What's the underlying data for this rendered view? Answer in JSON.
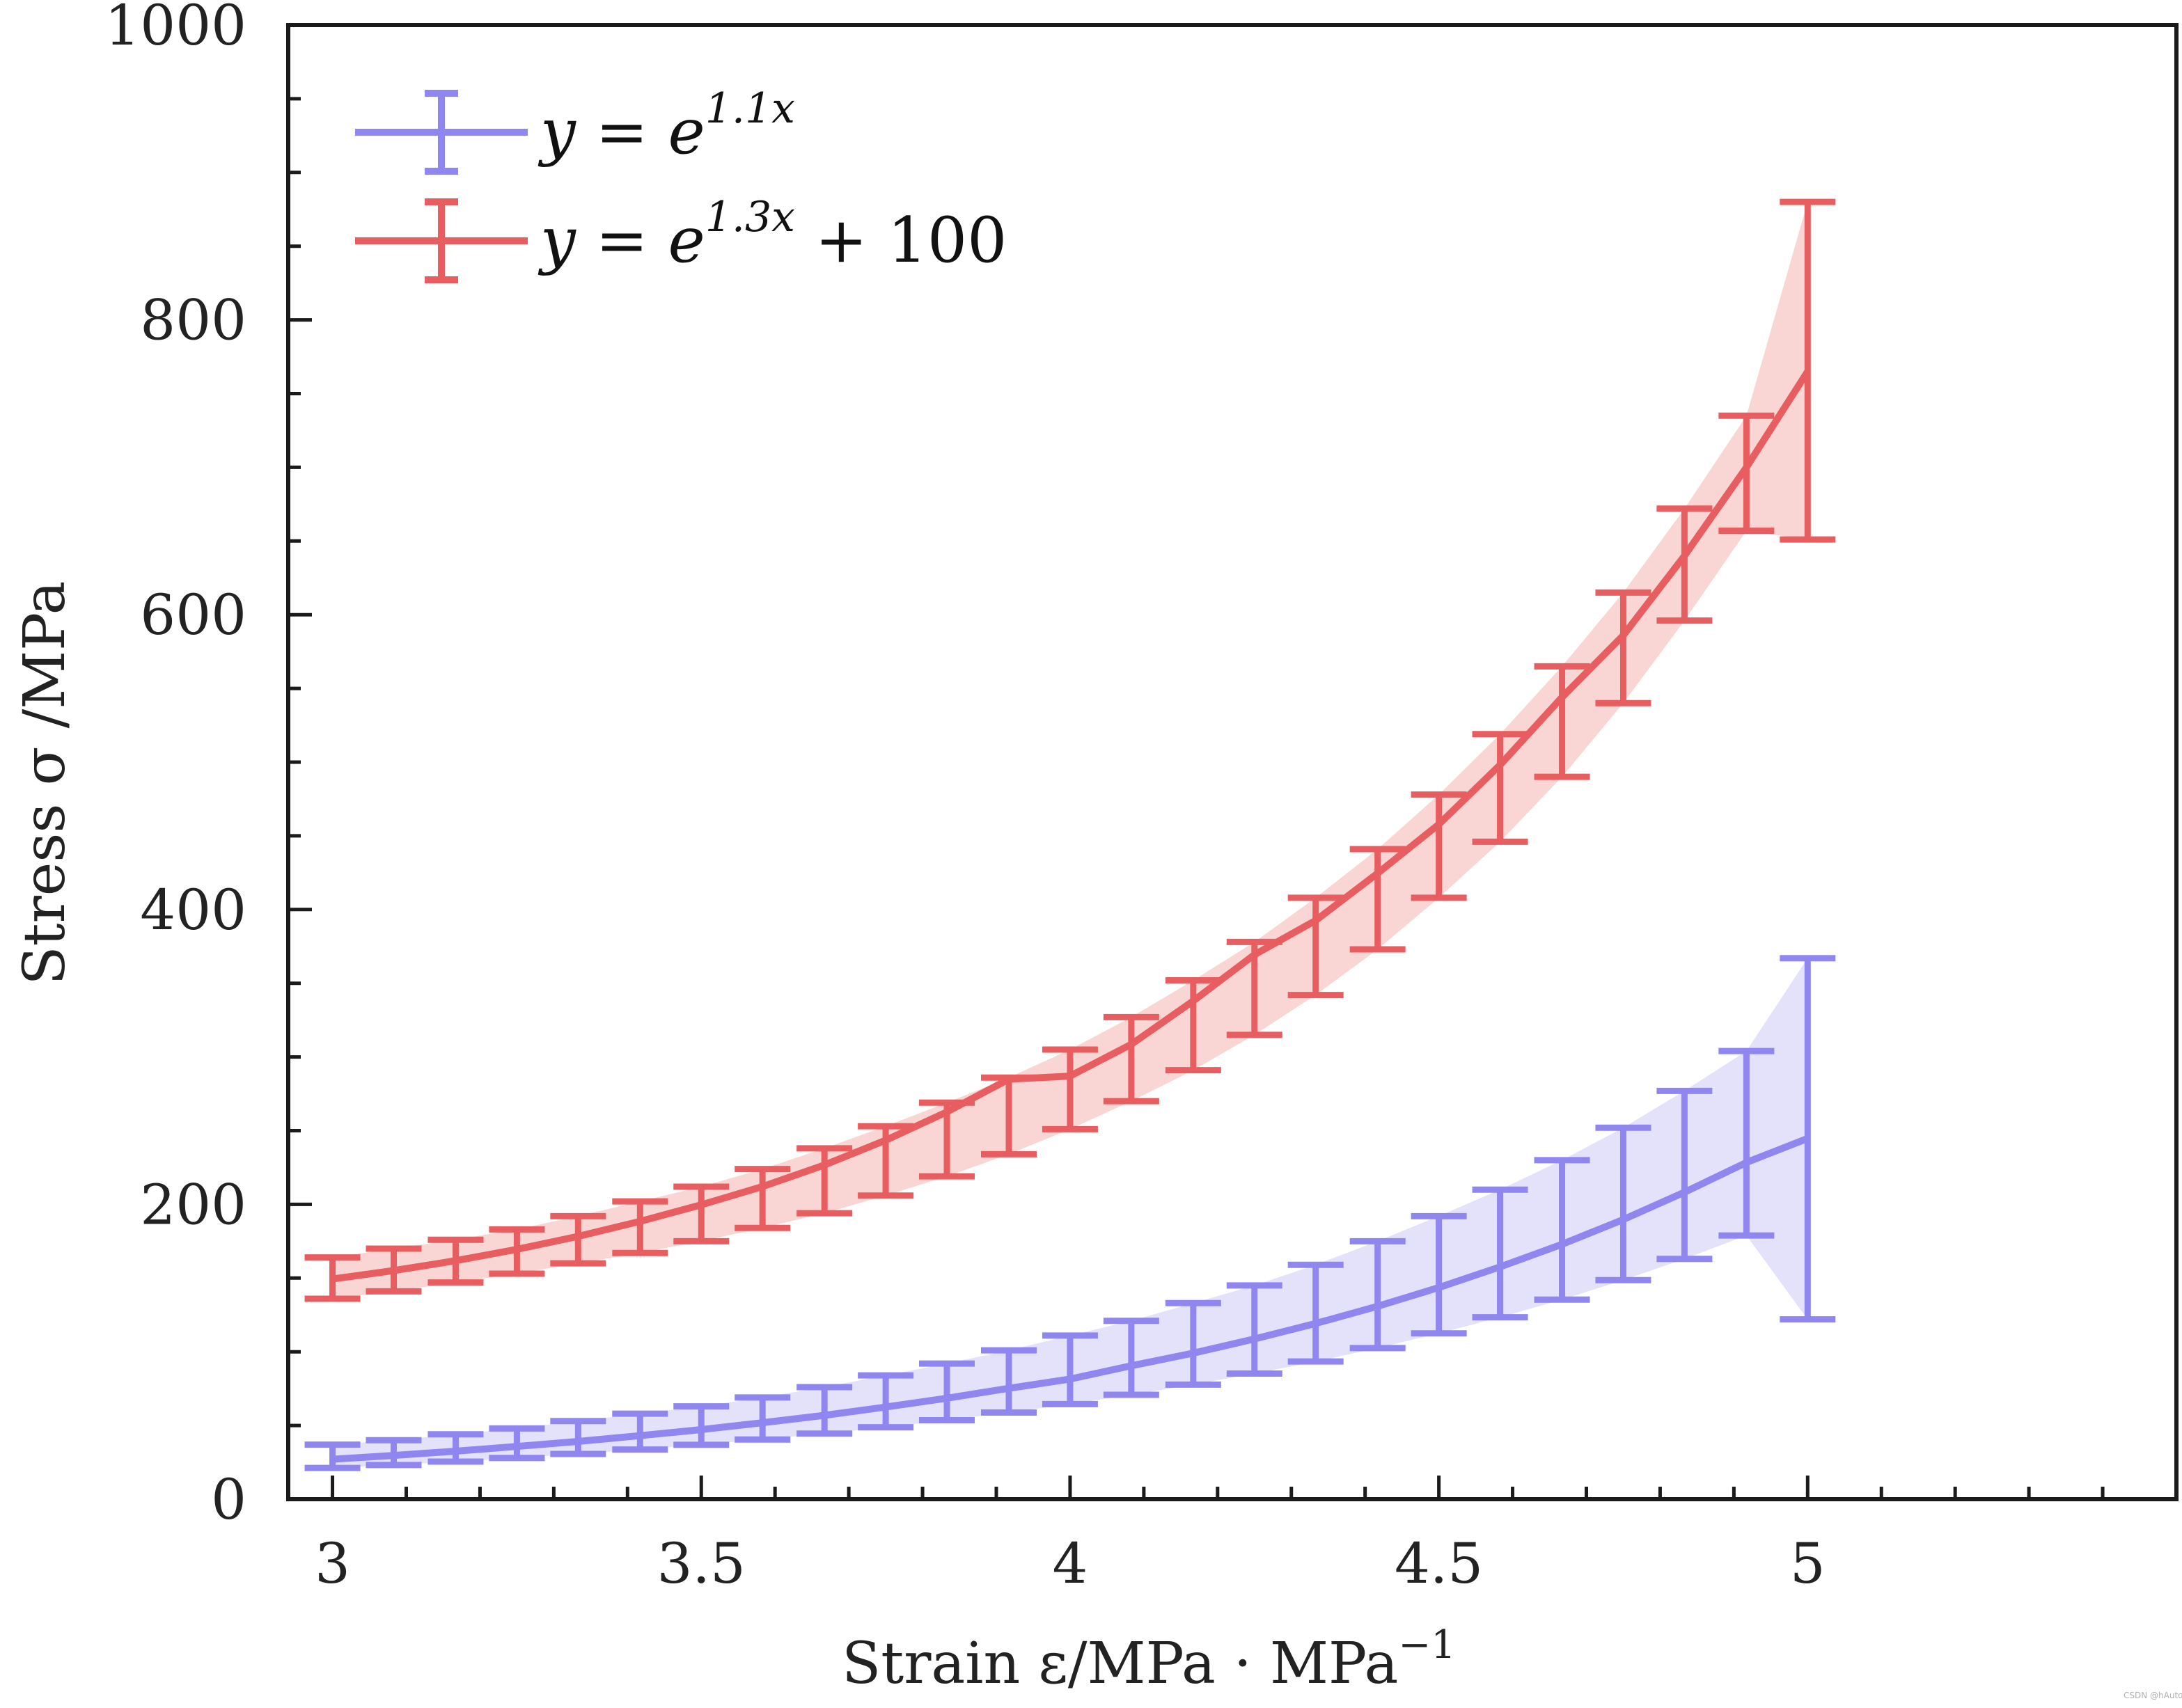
{
  "chart_data": {
    "type": "line",
    "x": [
      3.0,
      3.083,
      3.167,
      3.25,
      3.333,
      3.417,
      3.5,
      3.583,
      3.667,
      3.75,
      3.833,
      3.917,
      4.0,
      4.083,
      4.167,
      4.25,
      4.333,
      4.417,
      4.5,
      4.583,
      4.667,
      4.75,
      4.833,
      4.917,
      5.0
    ],
    "series": [
      {
        "name": "y = e^{1.1x}",
        "legend_main": "y = e",
        "legend_sup": "1.1x",
        "legend_tail": "",
        "color": "#8f86f0",
        "fill": "#e4e1fb",
        "values": [
          27.1,
          29.7,
          32.6,
          35.8,
          39.2,
          43.1,
          47.2,
          51.9,
          56.9,
          62.5,
          68.5,
          75.2,
          81.5,
          90.5,
          99.1,
          108.7,
          119.2,
          130.9,
          143.6,
          157.6,
          172.9,
          189.7,
          208.2,
          228.4,
          244.7
        ],
        "err_low": [
          21.2,
          23.2,
          25.5,
          28.0,
          30.7,
          33.7,
          36.9,
          40.5,
          44.5,
          48.8,
          53.6,
          58.8,
          64.5,
          70.8,
          77.7,
          85.2,
          93.4,
          102.5,
          112.5,
          123.4,
          135.4,
          148.6,
          163.0,
          178.9,
          122.0
        ],
        "err_high": [
          37.0,
          40.0,
          44.0,
          48.0,
          53.0,
          58.0,
          63.0,
          69.0,
          76.0,
          84.0,
          92.0,
          101.0,
          111.0,
          121.0,
          133.0,
          145.0,
          159.0,
          175.0,
          192.0,
          210.0,
          230.0,
          252.0,
          277.0,
          304.0,
          367.0
        ]
      },
      {
        "name": "y = e^{1.3x} + 100",
        "legend_main": "y = e",
        "legend_sup": "1.3x",
        "legend_tail": " + 100",
        "color": "#e85d5f",
        "fill": "#f9d6d4",
        "values": [
          149.4,
          155.1,
          161.8,
          169.5,
          178.3,
          188.5,
          199.7,
          212.1,
          226.7,
          243.5,
          262.7,
          284.9,
          287.0,
          308.6,
          338.0,
          369.4,
          392.6,
          424.6,
          457.8,
          498.1,
          544.0,
          586.0,
          640.0,
          700.0,
          765.0
        ],
        "err_low": [
          136.0,
          141.0,
          147.0,
          153.0,
          160.0,
          167.0,
          175.0,
          184.0,
          194.0,
          206.0,
          219.0,
          234.0,
          251.0,
          270.0,
          291.0,
          315.0,
          342.0,
          373.0,
          408.0,
          446.0,
          490.0,
          540.0,
          596.0,
          657.0,
          651.0
        ],
        "err_high": [
          164.0,
          170.0,
          176.0,
          183.0,
          192.0,
          202.0,
          212.0,
          224.0,
          238.0,
          253.0,
          269.0,
          286.0,
          305.0,
          327.0,
          352.0,
          378.0,
          408.0,
          441.0,
          478.0,
          519.0,
          565.0,
          615.0,
          672.0,
          735.0,
          880.0
        ]
      }
    ],
    "xlim": [
      2.94,
      5.5
    ],
    "ylim": [
      0,
      1000
    ],
    "xticks": [
      3,
      3.5,
      4,
      4.5,
      5
    ],
    "xtick_labels": [
      "3",
      "3.5",
      "4",
      "4.5",
      "5"
    ],
    "yticks": [
      0,
      200,
      400,
      600,
      800,
      1000
    ],
    "ytick_labels": [
      "0",
      "200",
      "400",
      "600",
      "800",
      "1000"
    ],
    "x_minor_step": 0.1,
    "y_minor_step": 50,
    "xlabel": "Strain ε/MPa · MPa",
    "xlabel_sup": "−1",
    "ylabel": "Stress σ /MPa",
    "grid": false,
    "legend_position": "top-left"
  },
  "watermark": "CSDN @hAuto"
}
